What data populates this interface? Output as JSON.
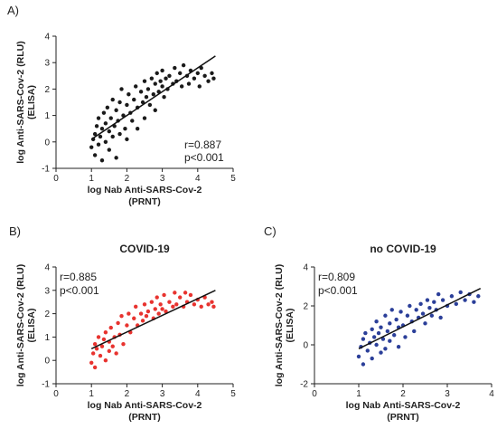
{
  "panels": {
    "A": "A)",
    "B": "B)",
    "C": "C)"
  },
  "chart_data": [
    {
      "id": "A",
      "type": "scatter",
      "title": "",
      "xlabel_line1": "log Nab Anti-SARS-Cov-2",
      "xlabel_line2": "(PRNT)",
      "ylabel_line1": "log Anti-SARS-Cov-2 (RLU)",
      "ylabel_line2": "(ELISA)",
      "xlim": [
        0,
        5
      ],
      "ylim": [
        -1,
        4
      ],
      "xticks": [
        "0",
        "1",
        "2",
        "3",
        "4",
        "5"
      ],
      "yticks": [
        "-1",
        "0",
        "1",
        "2",
        "3",
        "4"
      ],
      "r_text": "r=0.887",
      "p_text": "p<0.001",
      "point_color": "#1a1a1a",
      "fit_line": {
        "x": [
          1.0,
          4.5
        ],
        "y": [
          0.1,
          3.25
        ]
      },
      "points": [
        [
          1.0,
          -0.2
        ],
        [
          1.05,
          0.1
        ],
        [
          1.1,
          -0.5
        ],
        [
          1.1,
          0.3
        ],
        [
          1.15,
          0.6
        ],
        [
          1.2,
          -0.1
        ],
        [
          1.2,
          0.9
        ],
        [
          1.25,
          0.2
        ],
        [
          1.3,
          -0.7
        ],
        [
          1.3,
          0.5
        ],
        [
          1.35,
          1.1
        ],
        [
          1.4,
          0.0
        ],
        [
          1.4,
          0.7
        ],
        [
          1.45,
          1.3
        ],
        [
          1.5,
          -0.3
        ],
        [
          1.5,
          0.4
        ],
        [
          1.55,
          0.9
        ],
        [
          1.6,
          0.2
        ],
        [
          1.6,
          1.6
        ],
        [
          1.65,
          0.6
        ],
        [
          1.7,
          -0.6
        ],
        [
          1.7,
          1.2
        ],
        [
          1.75,
          0.8
        ],
        [
          1.8,
          0.3
        ],
        [
          1.8,
          1.5
        ],
        [
          1.85,
          2.0
        ],
        [
          1.9,
          1.0
        ],
        [
          1.95,
          0.5
        ],
        [
          2.0,
          1.4
        ],
        [
          2.0,
          0.1
        ],
        [
          2.05,
          1.8
        ],
        [
          2.1,
          1.1
        ],
        [
          2.15,
          0.8
        ],
        [
          2.2,
          1.6
        ],
        [
          2.25,
          2.1
        ],
        [
          2.3,
          1.3
        ],
        [
          2.3,
          0.5
        ],
        [
          2.4,
          1.9
        ],
        [
          2.45,
          1.5
        ],
        [
          2.5,
          2.3
        ],
        [
          2.5,
          0.9
        ],
        [
          2.55,
          1.7
        ],
        [
          2.6,
          2.0
        ],
        [
          2.65,
          1.4
        ],
        [
          2.7,
          2.4
        ],
        [
          2.75,
          1.8
        ],
        [
          2.8,
          2.2
        ],
        [
          2.8,
          1.2
        ],
        [
          2.85,
          2.6
        ],
        [
          2.9,
          1.9
        ],
        [
          2.95,
          2.3
        ],
        [
          3.0,
          2.1
        ],
        [
          3.0,
          2.7
        ],
        [
          3.05,
          1.7
        ],
        [
          3.1,
          2.4
        ],
        [
          3.15,
          2.0
        ],
        [
          3.2,
          2.5
        ],
        [
          3.3,
          2.2
        ],
        [
          3.35,
          2.8
        ],
        [
          3.4,
          2.3
        ],
        [
          3.5,
          2.6
        ],
        [
          3.55,
          2.1
        ],
        [
          3.6,
          2.9
        ],
        [
          3.7,
          2.5
        ],
        [
          3.75,
          2.2
        ],
        [
          3.8,
          2.7
        ],
        [
          3.9,
          2.4
        ],
        [
          4.0,
          2.6
        ],
        [
          4.05,
          2.1
        ],
        [
          4.1,
          2.8
        ],
        [
          4.2,
          2.5
        ],
        [
          4.3,
          2.3
        ],
        [
          4.4,
          2.6
        ],
        [
          4.45,
          2.4
        ]
      ]
    },
    {
      "id": "B",
      "type": "scatter",
      "title": "COVID-19",
      "xlabel_line1": "log Nab Anti-SARS-Cov-2",
      "xlabel_line2": "(PRNT)",
      "ylabel_line1": "log Anti-SARS-Cov-2 (RLU)",
      "ylabel_line2": "(ELISA)",
      "xlim": [
        0,
        5
      ],
      "ylim": [
        -1,
        4
      ],
      "xticks": [
        "0",
        "1",
        "2",
        "3",
        "4",
        "5"
      ],
      "yticks": [
        "-1",
        "0",
        "1",
        "2",
        "3",
        "4"
      ],
      "r_text": "r=0.885",
      "p_text": "p<0.001",
      "point_color": "#e8332f",
      "fit_line": {
        "x": [
          1.0,
          4.5
        ],
        "y": [
          0.5,
          3.0
        ]
      },
      "points": [
        [
          1.0,
          -0.1
        ],
        [
          1.05,
          0.3
        ],
        [
          1.1,
          0.7
        ],
        [
          1.1,
          -0.3
        ],
        [
          1.15,
          0.5
        ],
        [
          1.2,
          1.0
        ],
        [
          1.25,
          0.2
        ],
        [
          1.3,
          0.6
        ],
        [
          1.35,
          0.9
        ],
        [
          1.4,
          0.0
        ],
        [
          1.4,
          1.2
        ],
        [
          1.5,
          0.4
        ],
        [
          1.5,
          0.8
        ],
        [
          1.55,
          1.4
        ],
        [
          1.6,
          0.6
        ],
        [
          1.65,
          1.0
        ],
        [
          1.7,
          0.3
        ],
        [
          1.75,
          1.6
        ],
        [
          1.8,
          1.1
        ],
        [
          1.85,
          1.9
        ],
        [
          1.9,
          0.7
        ],
        [
          2.0,
          1.5
        ],
        [
          2.05,
          2.0
        ],
        [
          2.1,
          1.2
        ],
        [
          2.2,
          1.8
        ],
        [
          2.25,
          2.3
        ],
        [
          2.3,
          1.5
        ],
        [
          2.4,
          2.0
        ],
        [
          2.45,
          1.7
        ],
        [
          2.5,
          2.4
        ],
        [
          2.55,
          1.9
        ],
        [
          2.6,
          2.1
        ],
        [
          2.7,
          2.5
        ],
        [
          2.75,
          1.8
        ],
        [
          2.8,
          2.2
        ],
        [
          2.85,
          2.7
        ],
        [
          2.9,
          2.0
        ],
        [
          2.95,
          2.4
        ],
        [
          3.0,
          2.2
        ],
        [
          3.05,
          2.8
        ],
        [
          3.1,
          2.1
        ],
        [
          3.2,
          2.5
        ],
        [
          3.3,
          2.3
        ],
        [
          3.35,
          2.9
        ],
        [
          3.4,
          2.4
        ],
        [
          3.5,
          2.7
        ],
        [
          3.6,
          2.3
        ],
        [
          3.65,
          2.9
        ],
        [
          3.7,
          2.5
        ],
        [
          3.8,
          2.8
        ],
        [
          3.9,
          2.4
        ],
        [
          4.0,
          2.6
        ],
        [
          4.1,
          2.3
        ],
        [
          4.2,
          2.7
        ],
        [
          4.3,
          2.4
        ],
        [
          4.4,
          2.5
        ],
        [
          4.45,
          2.3
        ]
      ]
    },
    {
      "id": "C",
      "type": "scatter",
      "title": "no COVID-19",
      "xlabel_line1": "log Nab Anti-SARS-Cov-2",
      "xlabel_line2": "(PRNT)",
      "ylabel_line1": "log Anti-SARS-Cov-2 (RLU)",
      "ylabel_line2": "(ELISA)",
      "xlim": [
        0,
        4
      ],
      "ylim": [
        -2,
        4
      ],
      "xticks": [
        "0",
        "1",
        "2",
        "3",
        "4"
      ],
      "yticks": [
        "-2",
        "0",
        "2",
        "4"
      ],
      "r_text": "r=0.809",
      "p_text": "p<0.001",
      "point_color": "#2b3f99",
      "fit_line": {
        "x": [
          1.0,
          3.75
        ],
        "y": [
          -0.2,
          2.9
        ]
      },
      "points": [
        [
          1.0,
          -0.6
        ],
        [
          1.05,
          -0.1
        ],
        [
          1.1,
          0.3
        ],
        [
          1.1,
          -1.0
        ],
        [
          1.15,
          0.6
        ],
        [
          1.2,
          -0.3
        ],
        [
          1.25,
          0.1
        ],
        [
          1.3,
          0.8
        ],
        [
          1.3,
          -0.7
        ],
        [
          1.35,
          0.4
        ],
        [
          1.4,
          0.0
        ],
        [
          1.4,
          1.2
        ],
        [
          1.45,
          0.6
        ],
        [
          1.5,
          -0.4
        ],
        [
          1.5,
          0.9
        ],
        [
          1.55,
          0.3
        ],
        [
          1.6,
          1.5
        ],
        [
          1.6,
          -0.2
        ],
        [
          1.65,
          0.7
        ],
        [
          1.7,
          1.1
        ],
        [
          1.7,
          0.2
        ],
        [
          1.75,
          1.8
        ],
        [
          1.8,
          0.5
        ],
        [
          1.85,
          1.3
        ],
        [
          1.9,
          -0.1
        ],
        [
          1.9,
          0.9
        ],
        [
          1.95,
          1.7
        ],
        [
          2.0,
          1.0
        ],
        [
          2.05,
          0.4
        ],
        [
          2.1,
          1.5
        ],
        [
          2.15,
          2.0
        ],
        [
          2.2,
          1.2
        ],
        [
          2.25,
          0.7
        ],
        [
          2.3,
          1.8
        ],
        [
          2.35,
          1.4
        ],
        [
          2.4,
          2.1
        ],
        [
          2.45,
          1.6
        ],
        [
          2.5,
          1.1
        ],
        [
          2.55,
          2.3
        ],
        [
          2.6,
          1.9
        ],
        [
          2.65,
          1.5
        ],
        [
          2.7,
          2.2
        ],
        [
          2.75,
          1.8
        ],
        [
          2.8,
          2.6
        ],
        [
          2.85,
          1.4
        ],
        [
          2.9,
          2.3
        ],
        [
          3.0,
          2.0
        ],
        [
          3.1,
          2.5
        ],
        [
          3.2,
          2.1
        ],
        [
          3.3,
          2.7
        ],
        [
          3.4,
          2.3
        ],
        [
          3.5,
          2.6
        ],
        [
          3.6,
          2.2
        ],
        [
          3.7,
          2.5
        ]
      ]
    }
  ]
}
